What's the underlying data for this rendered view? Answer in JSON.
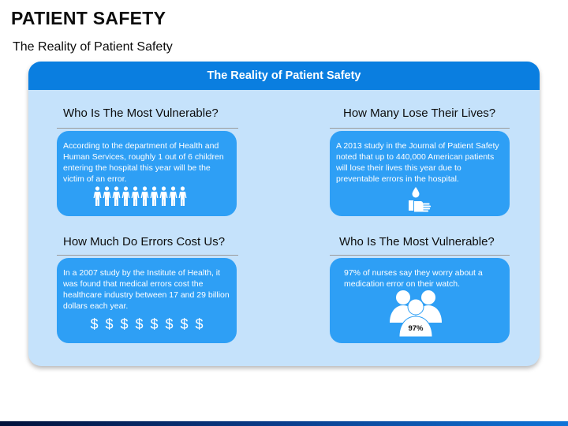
{
  "slide": {
    "title": "PATIENT SAFETY",
    "subtitle": "The Reality of Patient Safety"
  },
  "panel": {
    "header": "The Reality of Patient Safety"
  },
  "sections": [
    {
      "heading": "Who Is The Most Vulnerable?",
      "text": "According to the department of Health and Human Services, roughly 1 out of 6 children entering the hospital this year will be the victim of an error.",
      "icon": "people-row-icon"
    },
    {
      "heading": "How Many Lose Their Lives?",
      "text": "A 2013 study in the Journal of Patient Safety noted that up to 440,000 American patients will lose their lives this year due to preventable errors in the hospital.",
      "icon": "hand-drop-icon"
    },
    {
      "heading": "How Much Do Errors Cost Us?",
      "text": "In a 2007 study by the Institute of Health, it was found that medical errors cost the healthcare industry between 17 and 29 billion dollars each year.",
      "icon": "dollar-signs-icon",
      "dollar_symbols": [
        "$",
        "$",
        "$",
        "$",
        "$",
        "$",
        "$",
        "$"
      ]
    },
    {
      "heading": "Who Is The Most Vulnerable?",
      "text": "97% of nurses say they worry about a medication error on their watch.",
      "icon": "group-icon",
      "icon_label": "97%"
    }
  ],
  "colors": {
    "panel_bg": "#c5e2fb",
    "header_bg": "#0a7ee0",
    "card_bg": "#2e9ff5"
  }
}
